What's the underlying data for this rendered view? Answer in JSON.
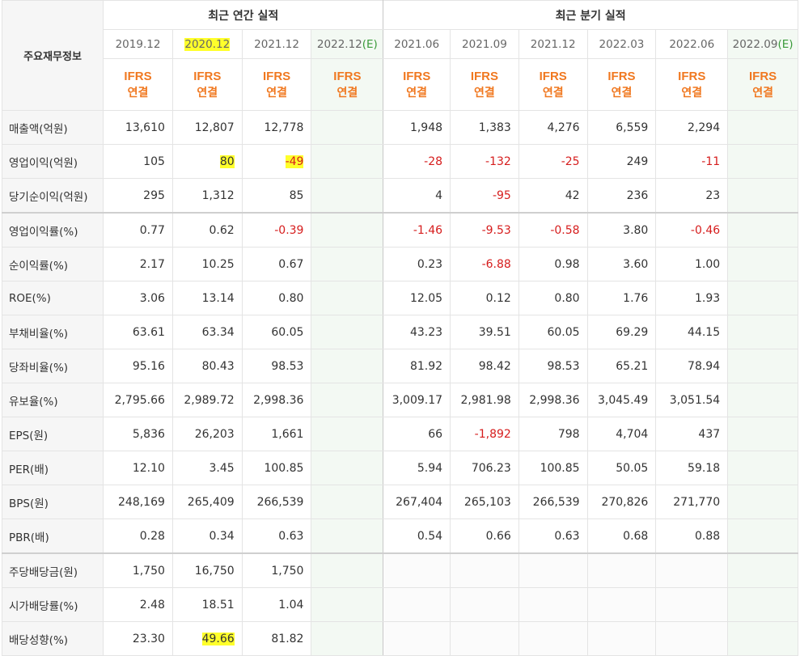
{
  "header": {
    "row_label_title": "주요재무정보",
    "annual_title": "최근 연간 실적",
    "quarterly_title": "최근 분기 실적",
    "annual_periods": [
      "2019.12",
      "2020.12",
      "2021.12",
      "2022.12"
    ],
    "annual_est_suffix": "(E)",
    "quarterly_periods": [
      "2021.06",
      "2021.09",
      "2021.12",
      "2022.03",
      "2022.06",
      "2022.09"
    ],
    "quarterly_est_suffix": "(E)",
    "basis_line1": "IFRS",
    "basis_line2": "연결"
  },
  "rows": [
    {
      "label": "매출액(억원)",
      "values": [
        "13,610",
        "12,807",
        "12,778",
        "",
        "1,948",
        "1,383",
        "4,276",
        "6,559",
        "2,294",
        ""
      ]
    },
    {
      "label": "영업이익(억원)",
      "values": [
        "105",
        "80",
        "-49",
        "",
        "-28",
        "-132",
        "-25",
        "249",
        "-11",
        ""
      ]
    },
    {
      "label": "당기순이익(억원)",
      "values": [
        "295",
        "1,312",
        "85",
        "",
        "4",
        "-95",
        "42",
        "236",
        "23",
        ""
      ]
    },
    {
      "label": "영업이익률(%)",
      "values": [
        "0.77",
        "0.62",
        "-0.39",
        "",
        "-1.46",
        "-9.53",
        "-0.58",
        "3.80",
        "-0.46",
        ""
      ]
    },
    {
      "label": "순이익률(%)",
      "values": [
        "2.17",
        "10.25",
        "0.67",
        "",
        "0.23",
        "-6.88",
        "0.98",
        "3.60",
        "1.00",
        ""
      ]
    },
    {
      "label": "ROE(%)",
      "values": [
        "3.06",
        "13.14",
        "0.80",
        "",
        "12.05",
        "0.12",
        "0.80",
        "1.76",
        "1.93",
        ""
      ]
    },
    {
      "label": "부채비율(%)",
      "values": [
        "63.61",
        "63.34",
        "60.05",
        "",
        "43.23",
        "39.51",
        "60.05",
        "69.29",
        "44.15",
        ""
      ]
    },
    {
      "label": "당좌비율(%)",
      "values": [
        "95.16",
        "80.43",
        "98.53",
        "",
        "81.92",
        "98.42",
        "98.53",
        "65.21",
        "78.94",
        ""
      ]
    },
    {
      "label": "유보율(%)",
      "values": [
        "2,795.66",
        "2,989.72",
        "2,998.36",
        "",
        "3,009.17",
        "2,981.98",
        "2,998.36",
        "3,045.49",
        "3,051.54",
        ""
      ]
    },
    {
      "label": "EPS(원)",
      "values": [
        "5,836",
        "26,203",
        "1,661",
        "",
        "66",
        "-1,892",
        "798",
        "4,704",
        "437",
        ""
      ]
    },
    {
      "label": "PER(배)",
      "values": [
        "12.10",
        "3.45",
        "100.85",
        "",
        "5.94",
        "706.23",
        "100.85",
        "50.05",
        "59.18",
        ""
      ]
    },
    {
      "label": "BPS(원)",
      "values": [
        "248,169",
        "265,409",
        "266,539",
        "",
        "267,404",
        "265,103",
        "266,539",
        "270,826",
        "271,770",
        ""
      ]
    },
    {
      "label": "PBR(배)",
      "values": [
        "0.28",
        "0.34",
        "0.63",
        "",
        "0.54",
        "0.66",
        "0.63",
        "0.68",
        "0.88",
        ""
      ]
    },
    {
      "label": "주당배당금(원)",
      "values": [
        "1,750",
        "16,750",
        "1,750",
        "",
        "",
        "",
        "",
        "",
        "",
        ""
      ]
    },
    {
      "label": "시가배당률(%)",
      "values": [
        "2.48",
        "18.51",
        "1.04",
        "",
        "",
        "",
        "",
        "",
        "",
        ""
      ]
    },
    {
      "label": "배당성향(%)",
      "values": [
        "23.30",
        "49.66",
        "81.82",
        "",
        "",
        "",
        "",
        "",
        "",
        ""
      ]
    }
  ],
  "colors": {
    "negative": "#d61d1d",
    "highlight": "#ffff2b",
    "basis": "#f07820",
    "estimate_bg": "#f3f9f3"
  }
}
